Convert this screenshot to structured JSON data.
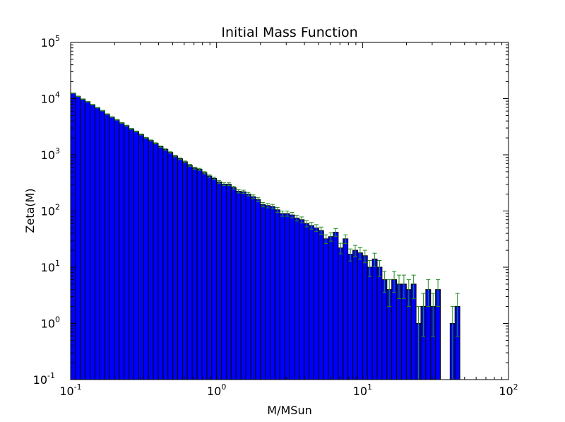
{
  "chart_data": {
    "type": "bar",
    "title": "Initial Mass Function",
    "xlabel": "M/MSun",
    "ylabel": "Zeta(M)",
    "x_scale": "log",
    "y_scale": "log",
    "xlim": [
      0.1,
      100
    ],
    "ylim": [
      0.1,
      100000
    ],
    "grid": false,
    "bar_color": "#0000ff",
    "edge_color": "#000000",
    "errorbar_color": "#228b22",
    "x_ticks": [
      {
        "base": "10",
        "exp": "-1",
        "value": 0.1
      },
      {
        "base": "10",
        "exp": "0",
        "value": 1
      },
      {
        "base": "10",
        "exp": "1",
        "value": 10
      },
      {
        "base": "10",
        "exp": "2",
        "value": 100
      }
    ],
    "y_ticks": [
      {
        "base": "10",
        "exp": "-1",
        "value": 0.1
      },
      {
        "base": "10",
        "exp": "0",
        "value": 1
      },
      {
        "base": "10",
        "exp": "1",
        "value": 10
      },
      {
        "base": "10",
        "exp": "2",
        "value": 100
      },
      {
        "base": "10",
        "exp": "3",
        "value": 1000
      },
      {
        "base": "10",
        "exp": "4",
        "value": 10000
      },
      {
        "base": "10",
        "exp": "5",
        "value": 100000
      }
    ],
    "bins_per_decade": 30,
    "values": [
      12500,
      11000,
      9800,
      8800,
      7800,
      6900,
      6100,
      5300,
      4700,
      4200,
      3700,
      3300,
      2900,
      2600,
      2300,
      2000,
      1800,
      1600,
      1400,
      1250,
      1100,
      950,
      850,
      750,
      650,
      580,
      550,
      480,
      420,
      380,
      330,
      300,
      300,
      260,
      225,
      220,
      200,
      180,
      160,
      130,
      125,
      120,
      105,
      90,
      90,
      85,
      75,
      70,
      60,
      55,
      50,
      45,
      32,
      35,
      42,
      22,
      32,
      17,
      20,
      18,
      16,
      10,
      14,
      10,
      6,
      4,
      6,
      5,
      5,
      4,
      5,
      1,
      2,
      4,
      2,
      4,
      0,
      0,
      1,
      2
    ]
  }
}
